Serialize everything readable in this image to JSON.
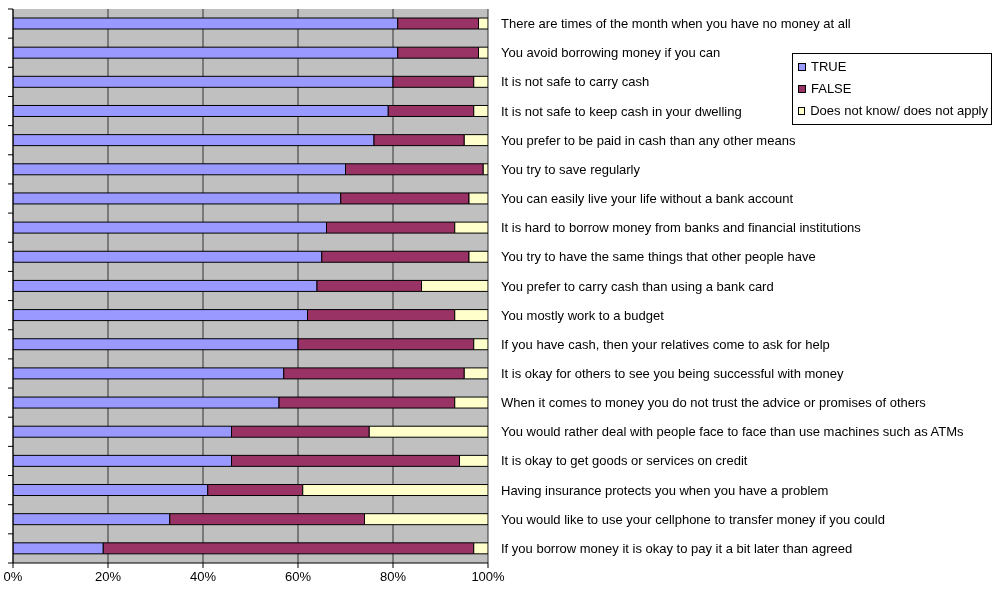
{
  "chart_data": {
    "type": "bar",
    "orientation": "horizontal",
    "stacked": true,
    "categories": [
      "There are times of the month when you have no money at all",
      "You avoid borrowing money if you can",
      "It is not safe to carry cash",
      "It is not safe to keep cash in your dwelling",
      "You prefer to be paid in cash than any other means",
      "You try to save regularly",
      "You can easily live your life without a bank account",
      "It is hard to borrow money from banks and financial institutions",
      "You try to have the same things that other people have",
      "You prefer to carry cash than using a bank card",
      "You mostly work to a budget",
      "If you have cash, then your relatives come to ask for help",
      "It is okay for others to see you being successful with money",
      "When it comes to money you do not trust the advice or promises of others",
      "You would rather deal with people face to face than use machines such as ATMs",
      "It is okay to get goods or services on credit",
      "Having insurance protects you when you have a problem",
      "You would like to use your cellphone to transfer money if you could",
      "If you borrow money it is okay to pay it a bit later than agreed"
    ],
    "series": [
      {
        "name": "TRUE",
        "color": "#9999ff",
        "values": [
          81,
          81,
          80,
          79,
          76,
          70,
          69,
          66,
          65,
          64,
          62,
          60,
          57,
          56,
          46,
          46,
          41,
          33,
          19
        ]
      },
      {
        "name": "FALSE",
        "color": "#993366",
        "values": [
          17,
          17,
          17,
          18,
          19,
          29,
          27,
          27,
          31,
          22,
          31,
          37,
          38,
          37,
          29,
          48,
          20,
          41,
          78
        ]
      },
      {
        "name": "Does not know/ does not apply",
        "color": "#ffffcc",
        "values": [
          2,
          2,
          3,
          3,
          5,
          1,
          4,
          7,
          4,
          14,
          7,
          3,
          5,
          7,
          25,
          6,
          39,
          26,
          3
        ]
      }
    ],
    "xlim": [
      0,
      100
    ],
    "xticks": [
      {
        "value": 0,
        "label": "0%"
      },
      {
        "value": 20,
        "label": "20%"
      },
      {
        "value": 40,
        "label": "40%"
      },
      {
        "value": 60,
        "label": "60%"
      },
      {
        "value": 80,
        "label": "80%"
      },
      {
        "value": 100,
        "label": "100%"
      }
    ],
    "grid": "x",
    "legend": "top right"
  }
}
